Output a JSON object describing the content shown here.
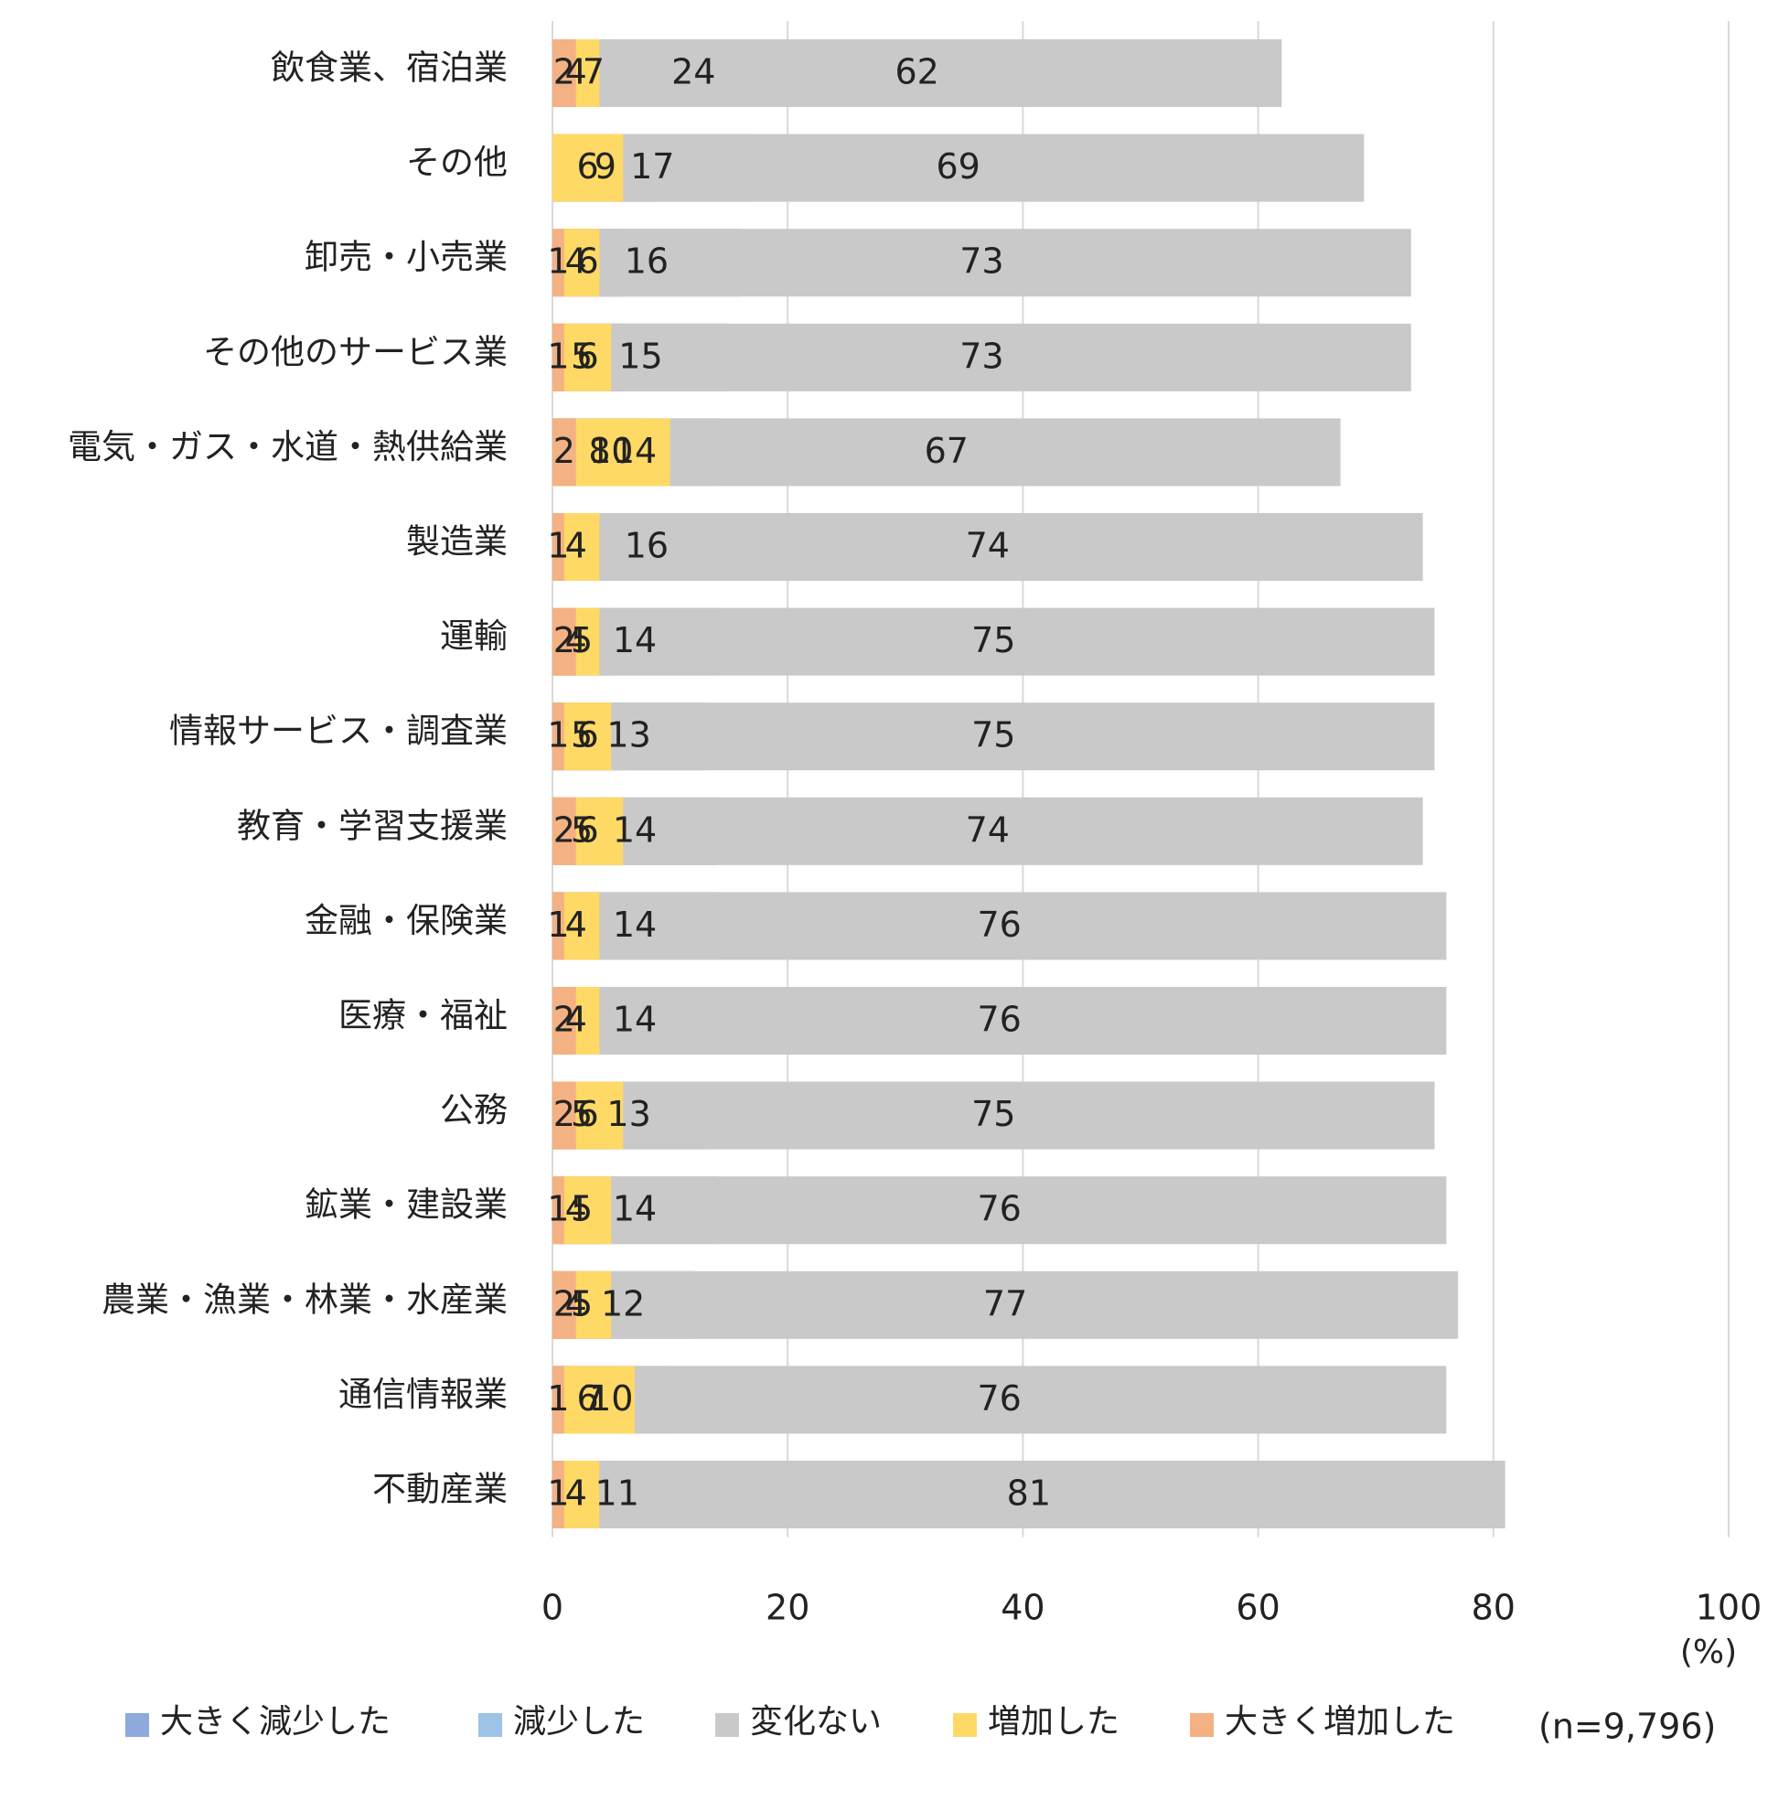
{
  "chart_data": {
    "type": "bar",
    "orientation": "horizontal",
    "stacked": true,
    "categories": [
      "飲食業、宿泊業",
      "その他",
      "卸売・小売業",
      "その他のサービス業",
      "電気・ガス・水道・熱供給業",
      "製造業",
      "運輸",
      "情報サービス・調査業",
      "教育・学習支援業",
      "金融・保険業",
      "医療・福祉",
      "公務",
      "鉱業・建設業",
      "農業・漁業・林業・水産業",
      "通信情報業",
      "不動産業"
    ],
    "series": [
      {
        "name": "大きく減少した",
        "color": "#8EA9DB",
        "values": [
          7,
          9,
          6,
          6,
          8,
          4,
          5,
          6,
          5,
          4,
          4,
          5,
          4,
          4,
          6,
          4
        ]
      },
      {
        "name": "減少した",
        "color": "#9DC3E6",
        "values": [
          24,
          17,
          16,
          15,
          14,
          16,
          14,
          13,
          14,
          14,
          14,
          13,
          14,
          12,
          10,
          11
        ]
      },
      {
        "name": "変化ない",
        "color": "#C9C9C9",
        "values": [
          62,
          69,
          73,
          73,
          67,
          74,
          75,
          75,
          74,
          76,
          76,
          75,
          76,
          77,
          76,
          81
        ]
      },
      {
        "name": "増加した",
        "color": "#FFD966",
        "values": [
          4,
          6,
          4,
          5,
          10,
          4,
          4,
          5,
          6,
          4,
          4,
          6,
          5,
          5,
          7,
          4
        ]
      },
      {
        "name": "大きく増加した",
        "color": "#F4B183",
        "values": [
          2,
          0,
          1,
          1,
          2,
          1,
          2,
          1,
          2,
          1,
          2,
          2,
          1,
          2,
          1,
          1
        ]
      }
    ],
    "xlim": [
      0,
      100
    ],
    "xticks": [
      "0",
      "20",
      "40",
      "60",
      "80",
      "100"
    ],
    "xunit": "(%)",
    "sample_note": "(n=9,796)",
    "legend_position": "bottom",
    "grid": true
  }
}
